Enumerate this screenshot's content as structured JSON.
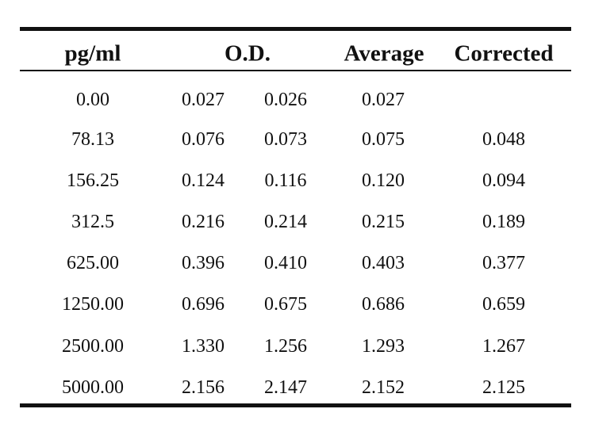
{
  "table": {
    "headers": {
      "concentration": "pg/ml",
      "od": "O.D.",
      "average": "Average",
      "corrected": "Corrected"
    },
    "rows": [
      {
        "pgml": "0.00",
        "od1": "0.027",
        "od2": "0.026",
        "average": "0.027",
        "corrected": ""
      },
      {
        "pgml": "78.13",
        "od1": "0.076",
        "od2": "0.073",
        "average": "0.075",
        "corrected": "0.048"
      },
      {
        "pgml": "156.25",
        "od1": "0.124",
        "od2": "0.116",
        "average": "0.120",
        "corrected": "0.094"
      },
      {
        "pgml": "312.5",
        "od1": "0.216",
        "od2": "0.214",
        "average": "0.215",
        "corrected": "0.189"
      },
      {
        "pgml": "625.00",
        "od1": "0.396",
        "od2": "0.410",
        "average": "0.403",
        "corrected": "0.377"
      },
      {
        "pgml": "1250.00",
        "od1": "0.696",
        "od2": "0.675",
        "average": "0.686",
        "corrected": "0.659"
      },
      {
        "pgml": "2500.00",
        "od1": "1.330",
        "od2": "1.256",
        "average": "1.293",
        "corrected": "1.267"
      },
      {
        "pgml": "5000.00",
        "od1": "2.156",
        "od2": "2.147",
        "average": "2.152",
        "corrected": "2.125"
      }
    ]
  }
}
